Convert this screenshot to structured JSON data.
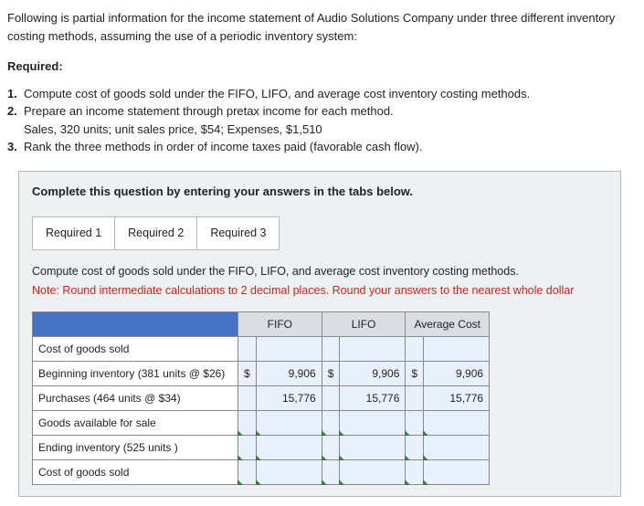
{
  "intro": "Following is partial information for the income statement of Audio Solutions Company under three different inventory costing methods, assuming the use of a periodic inventory system:",
  "required_label": "Required:",
  "requirements": [
    {
      "num": "1.",
      "text": "Compute cost of goods sold under the FIFO, LIFO, and average cost inventory costing methods."
    },
    {
      "num": "2.",
      "text": "Prepare an income statement through pretax income for each method."
    },
    {
      "num": "",
      "text": "Sales, 320 units; unit sales price, $54; Expenses, $1,510"
    },
    {
      "num": "3.",
      "text": "Rank the three methods in order of income taxes paid (favorable cash flow)."
    }
  ],
  "panel": {
    "instruction": "Complete this question by entering your answers in the tabs below.",
    "tabs": [
      "Required 1",
      "Required 2",
      "Required 3"
    ],
    "sub_instruction": "Compute cost of goods sold under the FIFO, LIFO, and average cost inventory costing methods.",
    "note": "Note: Round intermediate calculations to 2 decimal places. Round your answers to the nearest whole dollar",
    "table": {
      "col_headers": [
        "FIFO",
        "LIFO",
        "Average Cost"
      ],
      "rows": [
        {
          "label": "Cost of goods sold",
          "indent": 0,
          "vals": [
            null,
            null,
            null
          ],
          "dollars": [
            null,
            null,
            null
          ]
        },
        {
          "label": "Beginning inventory (381 units @ $26)",
          "indent": 1,
          "vals": [
            "9,906",
            "9,906",
            "9,906"
          ],
          "dollars": [
            "$",
            "$",
            "$"
          ]
        },
        {
          "label": "Purchases (464 units @ $34)",
          "indent": 1,
          "vals": [
            "15,776",
            "15,776",
            "15,776"
          ],
          "dollars": [
            null,
            null,
            null
          ]
        },
        {
          "label": "Goods available for sale",
          "indent": 2,
          "vals": [
            "",
            "",
            ""
          ],
          "dollars": [
            null,
            null,
            null
          ],
          "empty": true
        },
        {
          "label": "Ending inventory (525 units )",
          "indent": 1,
          "vals": [
            "",
            "",
            ""
          ],
          "dollars": [
            null,
            null,
            null
          ],
          "empty": true
        },
        {
          "label": "Cost of goods sold",
          "indent": 2,
          "vals": [
            "",
            "",
            ""
          ],
          "dollars": [
            null,
            null,
            null
          ],
          "empty": true
        }
      ]
    }
  }
}
